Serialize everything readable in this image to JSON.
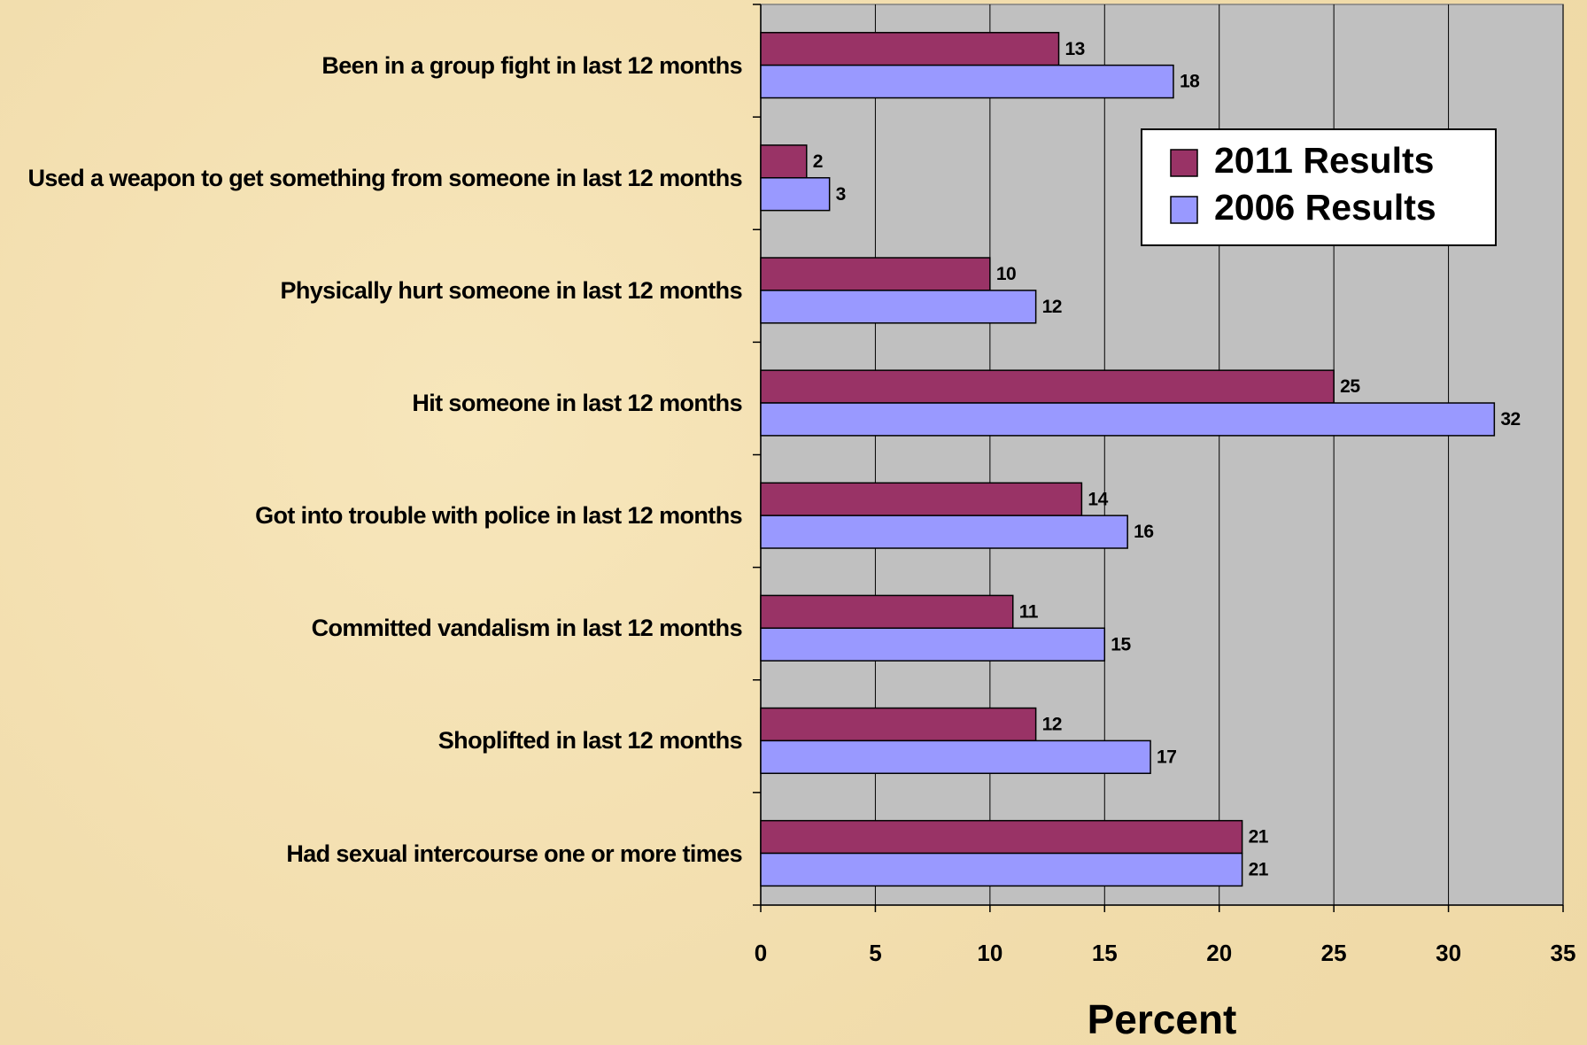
{
  "chart_data": {
    "type": "hbar",
    "xlabel": "Percent",
    "categories": [
      "Been in a group fight in last 12 months",
      "Used a weapon to get something from someone in last 12 months",
      "Physically hurt someone in last 12 months",
      "Hit someone in last 12 months",
      "Got into trouble with police in last 12 months",
      "Committed vandalism in last 12 months",
      "Shoplifted in last 12 months",
      "Had sexual intercourse one or more times"
    ],
    "series": [
      {
        "name": "2011 Results",
        "color": "#993366",
        "values": [
          13,
          2,
          10,
          25,
          14,
          11,
          12,
          21
        ]
      },
      {
        "name": "2006 Results",
        "color": "#9999ff",
        "values": [
          18,
          3,
          12,
          32,
          16,
          15,
          17,
          21
        ]
      }
    ],
    "xlim": [
      0,
      35
    ],
    "xticks": [
      0,
      5,
      10,
      15,
      20,
      25,
      30,
      35
    ],
    "grid": true,
    "legend": "top-right"
  }
}
